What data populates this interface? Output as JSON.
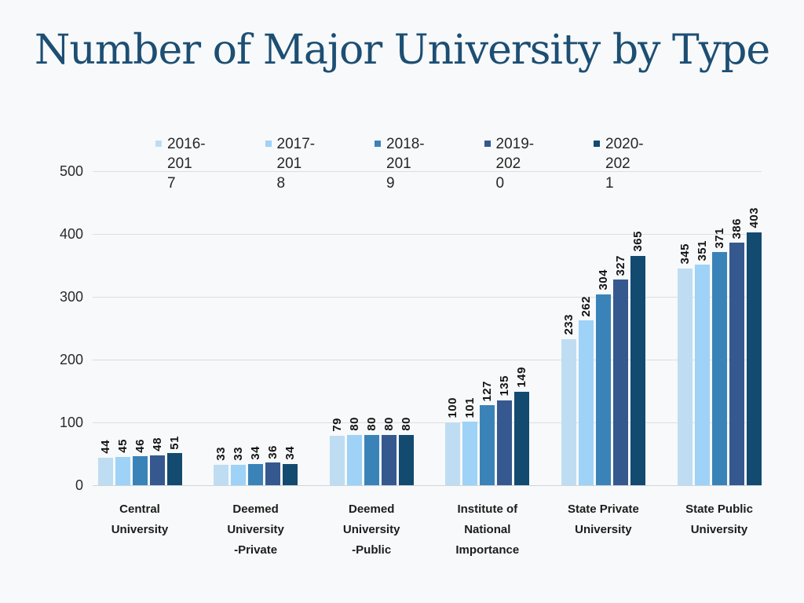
{
  "page": {
    "background": "#f7f9fa"
  },
  "title": {
    "text": "Number of Major University by Type",
    "color": "#1d4e73"
  },
  "legend": {
    "items": [
      {
        "label": "2016-2017",
        "display_lines": [
          "2016-201",
          "7"
        ],
        "color": "#bfddf2"
      },
      {
        "label": "2017-2018",
        "display_lines": [
          "2017-201",
          "8"
        ],
        "color": "#9ed2f6"
      },
      {
        "label": "2018-2019",
        "display_lines": [
          "2018-201",
          "9"
        ],
        "color": "#3a83b8"
      },
      {
        "label": "2019-2020",
        "display_lines": [
          "2019-202",
          "0"
        ],
        "color": "#35588f"
      },
      {
        "label": "2020-2021",
        "display_lines": [
          "2020-202",
          "1"
        ],
        "color": "#134a70"
      }
    ]
  },
  "axes": {
    "y_tick_labels": [
      "0",
      "100",
      "200",
      "300",
      "400",
      "500"
    ]
  },
  "chart_data": {
    "type": "bar",
    "title": "Number of Major University by Type",
    "categories": [
      "Central University",
      "Deemed University -Private",
      "Deemed University -Public",
      "Institute of National Importance",
      "State Private University",
      "State Public University"
    ],
    "category_display_lines": [
      [
        "Central",
        "University"
      ],
      [
        "Deemed",
        "University",
        "-Private"
      ],
      [
        "Deemed",
        "University",
        "-Public"
      ],
      [
        "Institute of",
        "National",
        "Importance"
      ],
      [
        "State Private",
        "University"
      ],
      [
        "State Public",
        "University"
      ]
    ],
    "series": [
      {
        "name": "2016-2017",
        "color": "#bfddf2",
        "values": [
          44,
          33,
          79,
          100,
          233,
          345
        ]
      },
      {
        "name": "2017-2018",
        "color": "#9ed2f6",
        "values": [
          45,
          33,
          80,
          101,
          262,
          351
        ]
      },
      {
        "name": "2018-2019",
        "color": "#3a83b8",
        "values": [
          46,
          34,
          80,
          127,
          304,
          371
        ]
      },
      {
        "name": "2019-2020",
        "color": "#35588f",
        "values": [
          48,
          36,
          80,
          135,
          327,
          386
        ]
      },
      {
        "name": "2020-2021",
        "color": "#134a70",
        "values": [
          51,
          34,
          80,
          149,
          365,
          403
        ]
      }
    ],
    "xlabel": "",
    "ylabel": "",
    "ylim": [
      0,
      500
    ],
    "yticks": [
      0,
      100,
      200,
      300,
      400,
      500
    ],
    "grid": true,
    "legend_position": "top",
    "data_labels": true,
    "data_label_rotation": 90
  },
  "colors": {
    "gridline": "#dcdfe2",
    "baseline": "#d2d5d8",
    "axis_text": "#2a2a2a",
    "data_label": "#141414"
  }
}
